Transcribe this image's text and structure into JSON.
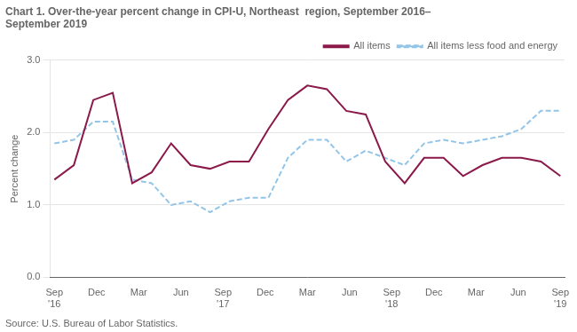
{
  "chart_data": {
    "type": "line",
    "title": "Chart 1. Over-the-year percent change in CPI-U, Northeast  region, September 2016–\nSeptember 2019",
    "y_label": "Percent change",
    "annotations": [
      "Source: U.S. Bureau of Labor Statistics."
    ],
    "x": [
      0,
      1.3846153846,
      2.7692307692,
      4.1538461538,
      5.5384615385,
      6.9230769231,
      8.3076923077,
      9.6923076923,
      11.0769230769,
      12.4615384615,
      13.8461538462,
      15.2307692308,
      16.6153846154,
      18,
      19.3846153846,
      20.7692307692,
      22.1538461538,
      23.5384615385,
      24.9230769231,
      26.3076923077,
      27.6923076923,
      29.0769230769,
      30.4615384615,
      31.8461538462,
      33.2307692308,
      34.6153846154,
      36
    ],
    "series": [
      {
        "name": "All items",
        "color": "#8B1A4A",
        "line_style": "solid",
        "marker": "none",
        "values": [
          1.35,
          1.55,
          2.45,
          2.55,
          1.3,
          1.45,
          1.85,
          1.55,
          1.5,
          1.6,
          1.6,
          2.05,
          2.45,
          2.65,
          2.6,
          2.3,
          2.25,
          1.6,
          1.3,
          1.65,
          1.65,
          1.4,
          1.55,
          1.65,
          1.65,
          1.6,
          1.4
        ]
      },
      {
        "name": "All items less food and energy",
        "color": "#92C5E8",
        "line_style": "dashed",
        "marker": "none",
        "values": [
          1.85,
          1.9,
          2.15,
          2.15,
          1.35,
          1.3,
          1.0,
          1.05,
          0.9,
          1.05,
          1.1,
          1.1,
          1.65,
          1.9,
          1.9,
          1.6,
          1.75,
          1.65,
          1.55,
          1.85,
          1.9,
          1.85,
          1.9,
          1.95,
          2.05,
          2.3,
          2.3
        ]
      }
    ],
    "xlim": [
      -0.3,
      36.3
    ],
    "xticks": [
      {
        "value": 0,
        "label": "Sep\n'16"
      },
      {
        "value": 3,
        "label": "Dec"
      },
      {
        "value": 6,
        "label": "Mar"
      },
      {
        "value": 9,
        "label": "Jun"
      },
      {
        "value": 12,
        "label": "Sep\n'17"
      },
      {
        "value": 15,
        "label": "Dec"
      },
      {
        "value": 18,
        "label": "Mar"
      },
      {
        "value": 21,
        "label": "Jun"
      },
      {
        "value": 24,
        "label": "Sep\n'18"
      },
      {
        "value": 27,
        "label": "Dec"
      },
      {
        "value": 30,
        "label": "Mar"
      },
      {
        "value": 33,
        "label": "Jun"
      },
      {
        "value": 36,
        "label": "Sep\n'19"
      }
    ],
    "ylim": [
      0.0,
      3.0
    ],
    "yticks": [
      {
        "value": 0,
        "label": "0.0"
      },
      {
        "value": 1,
        "label": "1.0"
      },
      {
        "value": 2,
        "label": "2.0"
      },
      {
        "value": 3,
        "label": "3.0"
      }
    ],
    "grid": "y",
    "legend": "top-right"
  }
}
